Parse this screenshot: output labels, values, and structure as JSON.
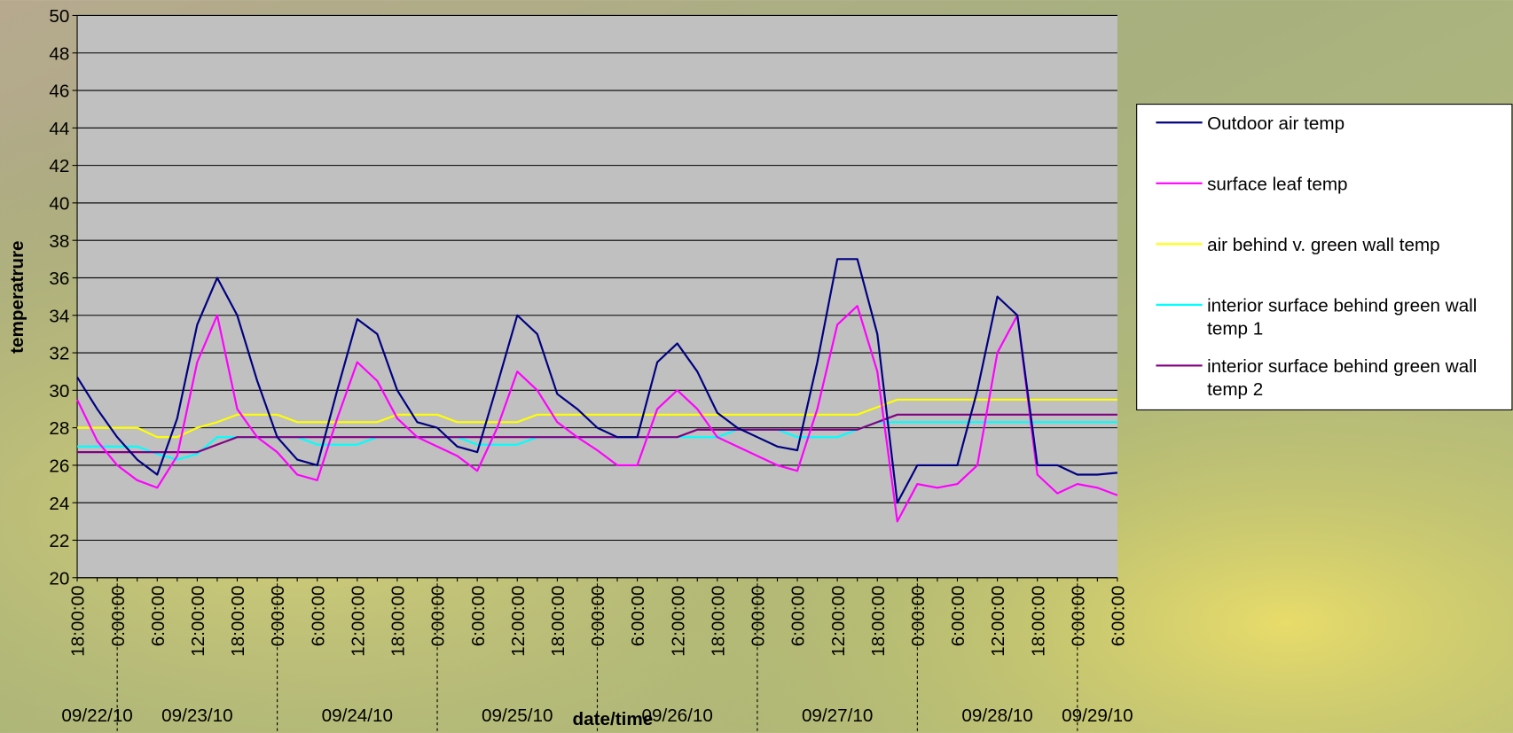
{
  "chart_data": {
    "type": "line",
    "x_label": "date/time",
    "y_label": "temperatrure",
    "categories": [
      "18:00:00",
      null,
      "0:00:00",
      null,
      "6:00:00",
      null,
      "12:00:00",
      null,
      "18:00:00",
      null,
      "0:00:00",
      null,
      "6:00:00",
      null,
      "12:00:00",
      null,
      "18:00:00",
      null,
      "0:00:00",
      null,
      "6:00:00",
      null,
      "12:00:00",
      null,
      "18:00:00",
      null,
      "0:00:00",
      null,
      "6:00:00",
      null,
      "12:00:00",
      null,
      "18:00:00",
      null,
      "0:00:00",
      null,
      "6:00:00",
      null,
      "12:00:00",
      null,
      "18:00:00",
      null,
      "0:00:00",
      null,
      "6:00:00",
      null,
      "12:00:00",
      null,
      "18:00:00",
      null,
      "0:00:00",
      null,
      "6:00:00"
    ],
    "category_groups": [
      "09/22/10",
      "09/23/10",
      "09/24/10",
      "09/25/10",
      "09/26/10",
      "09/27/10",
      "09/28/10",
      "09/29/10"
    ],
    "series": [
      {
        "name": "Outdoor air temp",
        "color": "#000080",
        "values": [
          30.7,
          29.0,
          27.5,
          26.3,
          25.5,
          28.5,
          33.5,
          36.0,
          34.0,
          30.5,
          27.5,
          26.3,
          26.0,
          30.0,
          33.8,
          33.0,
          30.0,
          28.3,
          28.0,
          27.0,
          26.7,
          30.3,
          34.0,
          33.0,
          29.8,
          29.0,
          28.0,
          27.5,
          27.5,
          31.5,
          32.5,
          31.0,
          28.8,
          28.0,
          27.5,
          27.0,
          26.8,
          31.5,
          37.0,
          37.0,
          33.0,
          24.0,
          26.0,
          26.0,
          26.0,
          30.0,
          35.0,
          34.0,
          26.0,
          26.0,
          25.5,
          25.5,
          25.6
        ]
      },
      {
        "name": "surface leaf temp",
        "color": "#ff00ff",
        "values": [
          29.5,
          27.3,
          26.0,
          25.2,
          24.8,
          26.5,
          31.5,
          34.0,
          29.0,
          27.5,
          26.7,
          25.5,
          25.2,
          28.5,
          31.5,
          30.5,
          28.5,
          27.5,
          27.0,
          26.5,
          25.7,
          28.0,
          31.0,
          30.0,
          28.3,
          27.5,
          26.8,
          26.0,
          26.0,
          29.0,
          30.0,
          29.0,
          27.5,
          27.0,
          26.5,
          26.0,
          25.7,
          29.0,
          33.5,
          34.5,
          31.0,
          23.0,
          25.0,
          24.8,
          25.0,
          26.0,
          32.0,
          34.0,
          25.5,
          24.5,
          25.0,
          24.8,
          24.4
        ]
      },
      {
        "name": "air behind v. green wall temp",
        "color": "#ffff00",
        "values": [
          28.0,
          28.0,
          28.0,
          28.0,
          27.5,
          27.5,
          28.0,
          28.3,
          28.7,
          28.7,
          28.7,
          28.3,
          28.3,
          28.3,
          28.3,
          28.3,
          28.7,
          28.7,
          28.7,
          28.3,
          28.3,
          28.3,
          28.3,
          28.7,
          28.7,
          28.7,
          28.7,
          28.7,
          28.7,
          28.7,
          28.7,
          28.7,
          28.7,
          28.7,
          28.7,
          28.7,
          28.7,
          28.7,
          28.7,
          28.7,
          29.1,
          29.5,
          29.5,
          29.5,
          29.5,
          29.5,
          29.5,
          29.5,
          29.5,
          29.5,
          29.5,
          29.5,
          29.5
        ]
      },
      {
        "name": "interior  surface behind green wall temp 1",
        "color": "#00ffff",
        "values": [
          27.0,
          27.0,
          27.0,
          27.0,
          26.6,
          26.3,
          26.6,
          27.5,
          27.5,
          27.5,
          27.5,
          27.5,
          27.1,
          27.1,
          27.1,
          27.5,
          27.5,
          27.5,
          27.5,
          27.5,
          27.1,
          27.1,
          27.1,
          27.5,
          27.5,
          27.5,
          27.5,
          27.5,
          27.5,
          27.5,
          27.5,
          27.5,
          27.5,
          27.9,
          27.9,
          27.9,
          27.5,
          27.5,
          27.5,
          27.9,
          28.3,
          28.3,
          28.3,
          28.3,
          28.3,
          28.3,
          28.3,
          28.3,
          28.3,
          28.3,
          28.3,
          28.3,
          28.3
        ]
      },
      {
        "name": "interior  surface behind green wall temp 2",
        "color": "#800080",
        "values": [
          26.7,
          26.7,
          26.7,
          26.7,
          26.7,
          26.7,
          26.7,
          27.1,
          27.5,
          27.5,
          27.5,
          27.5,
          27.5,
          27.5,
          27.5,
          27.5,
          27.5,
          27.5,
          27.5,
          27.5,
          27.5,
          27.5,
          27.5,
          27.5,
          27.5,
          27.5,
          27.5,
          27.5,
          27.5,
          27.5,
          27.5,
          27.9,
          27.9,
          27.9,
          27.9,
          27.9,
          27.9,
          27.9,
          27.9,
          27.9,
          28.3,
          28.7,
          28.7,
          28.7,
          28.7,
          28.7,
          28.7,
          28.7,
          28.7,
          28.7,
          28.7,
          28.7,
          28.7
        ]
      }
    ],
    "ylim": [
      20,
      50
    ],
    "yticks": [
      20,
      22,
      24,
      26,
      28,
      30,
      32,
      34,
      36,
      38,
      40,
      42,
      44,
      46,
      48,
      50
    ],
    "grid": true,
    "legend": "right"
  }
}
